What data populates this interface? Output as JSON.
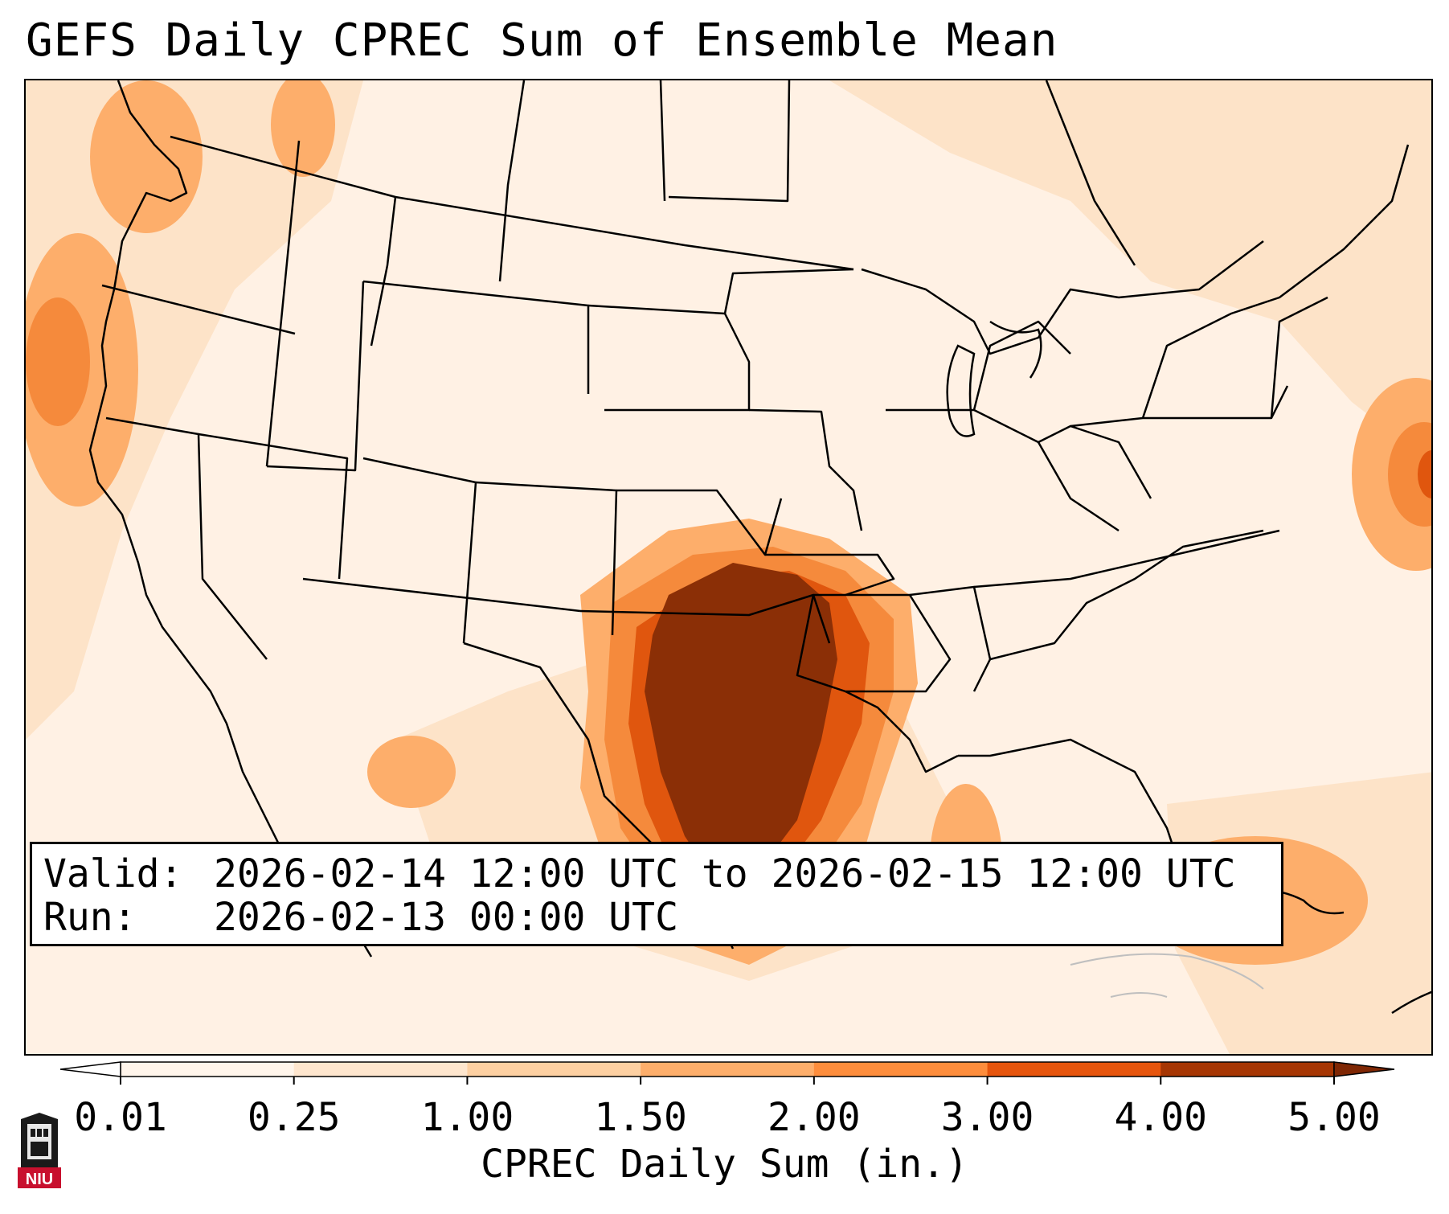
{
  "title": "GEFS Daily CPREC Sum of Ensemble Mean",
  "info": {
    "valid_label": "Valid:",
    "valid_value": "2026-02-14 12:00 UTC to 2026-02-15 12:00 UTC",
    "run_label": "Run:",
    "run_value": "2026-02-13 00:00 UTC"
  },
  "colorbar": {
    "label": "CPREC Daily Sum (in.)",
    "ticks": [
      "0.01",
      "0.25",
      "1.00",
      "1.50",
      "2.00",
      "3.00",
      "4.00",
      "5.00"
    ],
    "colors": [
      "#fff5eb",
      "#fee6ce",
      "#fdd0a2",
      "#fdae6b",
      "#fd8d3c",
      "#e6550d",
      "#a63603"
    ],
    "under_color": "#ffffff",
    "over_color": "#7f2704"
  },
  "logo": {
    "text": "NIU",
    "color": "#c8102e"
  },
  "precip_colors": {
    "trace": "#fff1e4",
    "light": "#fde3c8",
    "moderate": "#fdd0a2",
    "mid": "#fdae6b",
    "high": "#f58a3c",
    "heavy": "#e0560e",
    "extreme": "#8b2f06"
  }
}
